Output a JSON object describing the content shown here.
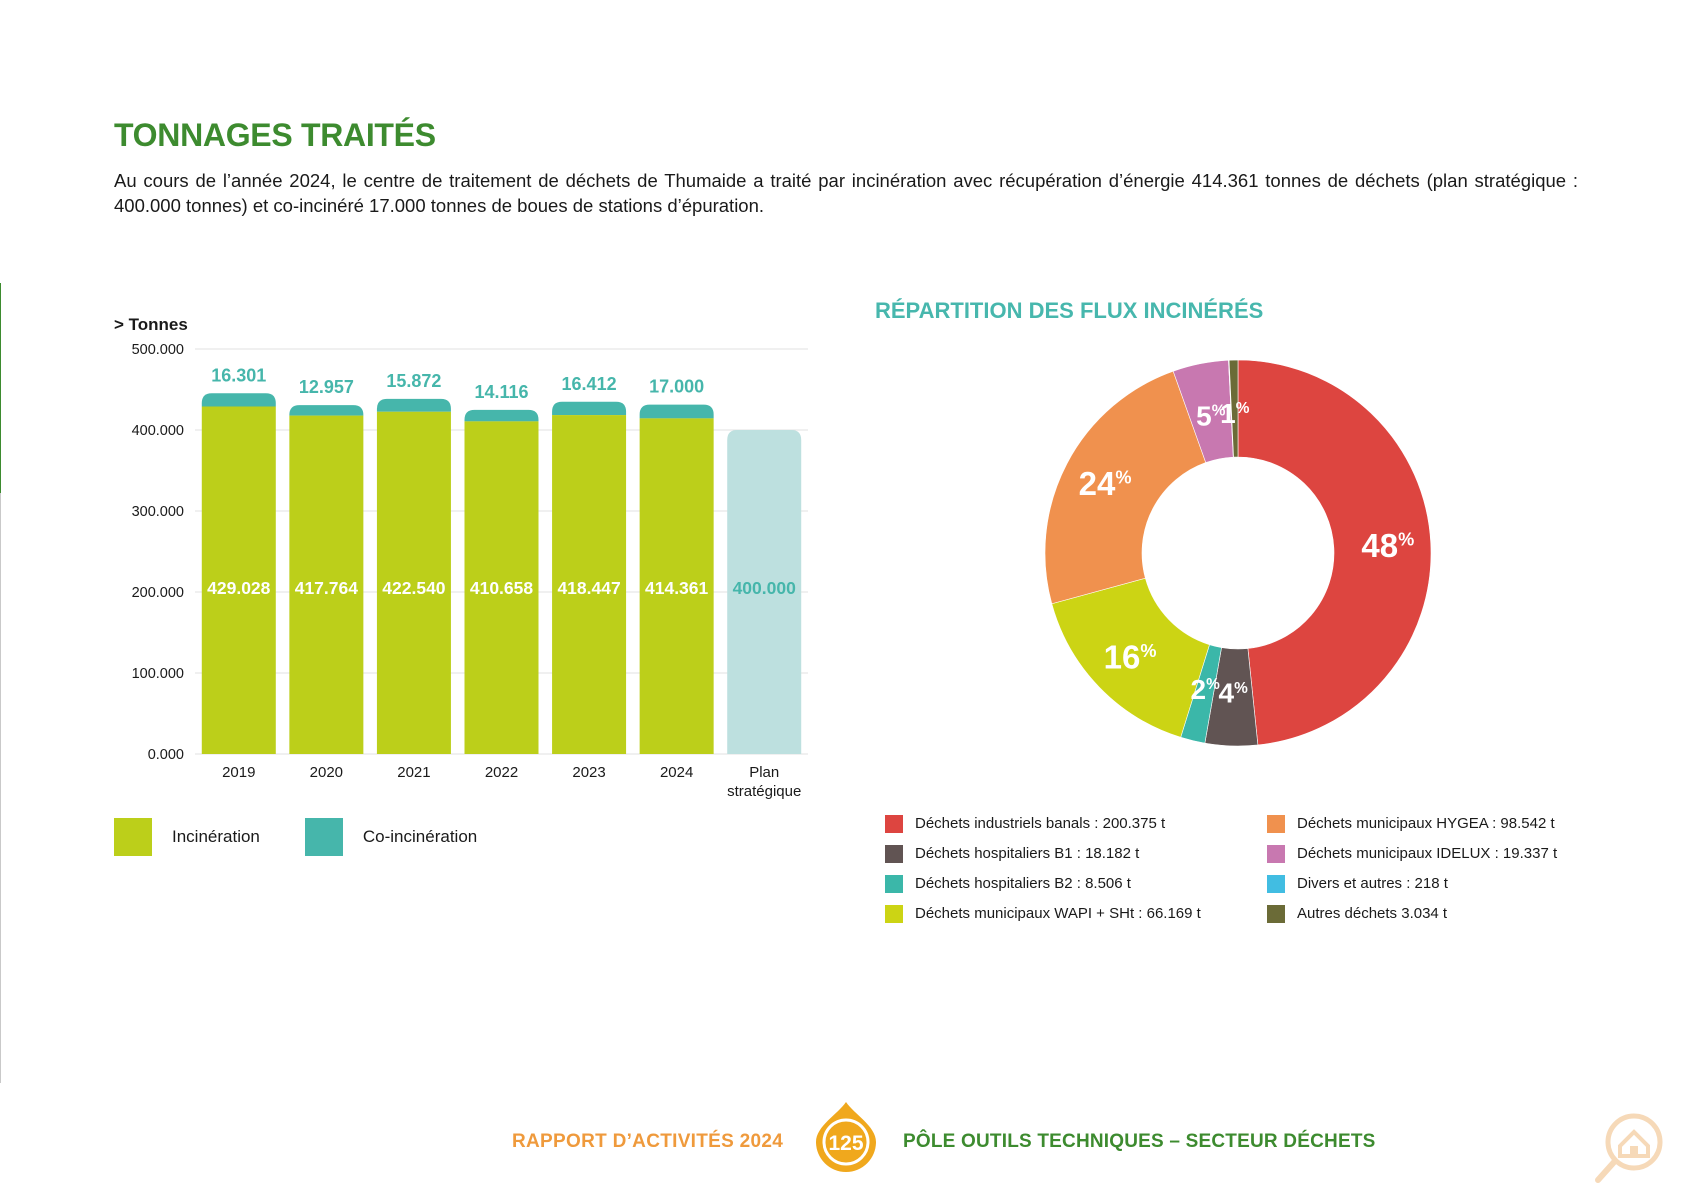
{
  "page": {
    "title": "TONNAGES TRAITÉS",
    "intro": "Au cours de l’année 2024, le centre de traitement de déchets de Thumaide a traité par incinération avec récupération d’énergie 414.361 tonnes de déchets (plan stratégique : 400.000 tonnes) et co-inciné­ré 17.000 tonnes de boues de stations d’épuration."
  },
  "footer": {
    "left": "RAPPORT D’ACTIVITÉS 2024",
    "page_number": "125",
    "right": "PÔLE OUTILS TECHNIQUES – SECTEUR DÉCHETS"
  },
  "colors": {
    "green_title": "#3d8b2f",
    "teal_title": "#47b7ad",
    "incineration": "#bccf1a",
    "co_incineration": "#46b6ab",
    "plan": "#bde0df",
    "footer_orange": "#ef9a3c"
  },
  "bar_legend": {
    "incineration": "Incinération",
    "co_incineration": "Co-incinération"
  },
  "donut_title": "RÉPARTITION DES FLUX INCINÉRÉS",
  "donut_legend": [
    {
      "label": "Déchets industriels banals : 200.375 t",
      "color": "#dd4540"
    },
    {
      "label": "Déchets municipaux HYGEA : 98.542 t",
      "color": "#f0914e"
    },
    {
      "label": "Déchets hospitaliers B1 : 18.182 t",
      "color": "#615453"
    },
    {
      "label": "Déchets municipaux IDELUX : 19.337 t",
      "color": "#c878b0"
    },
    {
      "label": "Déchets hospitaliers B2 : 8.506 t",
      "color": "#3bb7a9"
    },
    {
      "label": "Divers et autres : 218 t",
      "color": "#41bde2"
    },
    {
      "label": "Déchets municipaux WAPI + SHt : 66.169 t",
      "color": "#ccd414"
    },
    {
      "label": "Autres déchets 3.034 t",
      "color": "#6b6b37"
    }
  ],
  "chart_data": [
    {
      "type": "bar",
      "title": "",
      "ylabel": "> Tonnes",
      "xlabel": "",
      "ylim": [
        0,
        500000
      ],
      "y_ticks": [
        "0.000",
        "100.000",
        "200.000",
        "300.000",
        "400.000",
        "500.000"
      ],
      "y_tick_values": [
        0,
        100000,
        200000,
        300000,
        400000,
        500000
      ],
      "grid": true,
      "stacked": true,
      "categories": [
        "2019",
        "2020",
        "2021",
        "2022",
        "2023",
        "2024",
        "Plan stratégique"
      ],
      "series": [
        {
          "name": "Incinération",
          "values": [
            429028,
            417764,
            422540,
            410658,
            418447,
            414361,
            null
          ],
          "labels": [
            "429.028",
            "417.764",
            "422.540",
            "410.658",
            "418.447",
            "414.361",
            ""
          ]
        },
        {
          "name": "Co-incinération",
          "values": [
            16301,
            12957,
            15872,
            14116,
            16412,
            17000,
            null
          ],
          "labels": [
            "16.301",
            "12.957",
            "15.872",
            "14.116",
            "16.412",
            "17.000",
            ""
          ]
        },
        {
          "name": "Plan stratégique",
          "values": [
            null,
            null,
            null,
            null,
            null,
            null,
            400000
          ],
          "labels": [
            "",
            "",
            "",
            "",
            "",
            "",
            "400.000"
          ]
        }
      ]
    },
    {
      "type": "pie",
      "subtype": "donut",
      "title": "RÉPARTITION DES FLUX INCINÉRÉS",
      "slices": [
        {
          "label": "Déchets industriels banals",
          "value": 200375,
          "percent_label": "48",
          "color": "#dd4540"
        },
        {
          "label": "Déchets hospitaliers B1",
          "value": 18182,
          "percent_label": "4",
          "color": "#615453"
        },
        {
          "label": "Déchets hospitaliers B2",
          "value": 8506,
          "percent_label": "2",
          "color": "#3bb7a9"
        },
        {
          "label": "Déchets municipaux WAPI + SHt",
          "value": 66169,
          "percent_label": "16",
          "color": "#ccd414"
        },
        {
          "label": "Déchets municipaux HYGEA",
          "value": 98542,
          "percent_label": "24",
          "color": "#f0914e"
        },
        {
          "label": "Déchets municipaux IDELUX",
          "value": 19337,
          "percent_label": "5",
          "color": "#c878b0"
        },
        {
          "label": "Divers et autres",
          "value": 218,
          "percent_label": "",
          "color": "#41bde2"
        },
        {
          "label": "Autres déchets",
          "value": 3034,
          "percent_label": "1",
          "color": "#6b6b37"
        }
      ],
      "percent_suffix": "%"
    }
  ]
}
